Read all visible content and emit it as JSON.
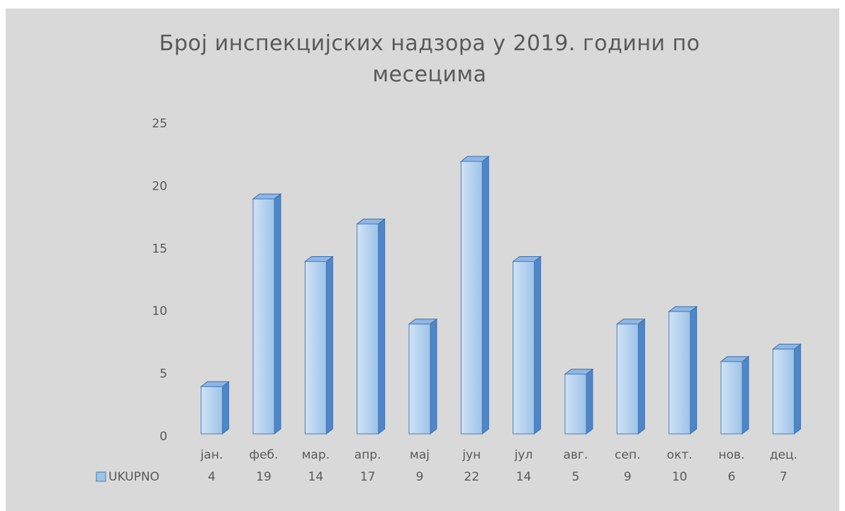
{
  "chart_data": {
    "type": "bar3d",
    "title": "Број инспекцијских надзора у 2019. години по месецима",
    "categories": [
      "јан.",
      "феб.",
      "мар.",
      "апр.",
      "мај",
      "јун",
      "јул",
      "авг.",
      "сеп.",
      "окт.",
      "нов.",
      "дец."
    ],
    "series": [
      {
        "name": "UKUPNO",
        "color": "#9dc3e6",
        "values": [
          4,
          19,
          14,
          17,
          9,
          22,
          14,
          5,
          9,
          10,
          6,
          7
        ]
      }
    ],
    "ylim": [
      0,
      25
    ],
    "yticks": [
      0,
      5,
      10,
      15,
      20,
      25
    ],
    "grid": false,
    "data_table": true
  }
}
